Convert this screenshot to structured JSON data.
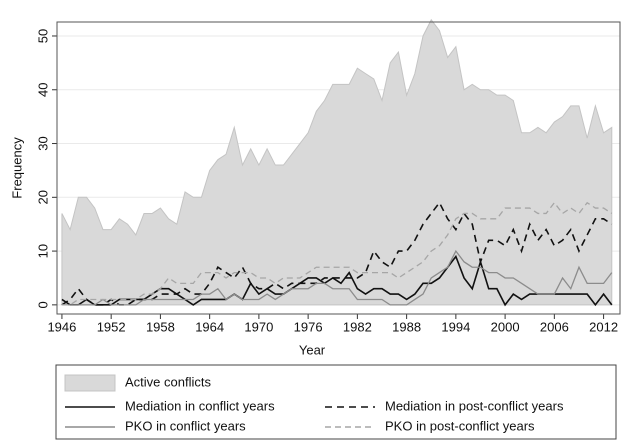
{
  "chart_data": {
    "type": "line",
    "x_label": "Year",
    "y_label": "Frequency",
    "x": [
      1946,
      1947,
      1948,
      1949,
      1950,
      1951,
      1952,
      1953,
      1954,
      1955,
      1956,
      1957,
      1958,
      1959,
      1960,
      1961,
      1962,
      1963,
      1964,
      1965,
      1966,
      1967,
      1968,
      1969,
      1970,
      1971,
      1972,
      1973,
      1974,
      1975,
      1976,
      1977,
      1978,
      1979,
      1980,
      1981,
      1982,
      1983,
      1984,
      1985,
      1986,
      1987,
      1988,
      1989,
      1990,
      1991,
      1992,
      1993,
      1994,
      1995,
      1996,
      1997,
      1998,
      1999,
      2000,
      2001,
      2002,
      2003,
      2004,
      2005,
      2006,
      2007,
      2008,
      2009,
      2010,
      2011,
      2012,
      2013
    ],
    "series": [
      {
        "name": "Active conflicts",
        "color": "#d9d9d9",
        "style": "area",
        "values": [
          17,
          14,
          20,
          20,
          18,
          14,
          14,
          16,
          15,
          13,
          17,
          17,
          18,
          16,
          15,
          21,
          20,
          20,
          25,
          27,
          28,
          33,
          26,
          29,
          26,
          29,
          26,
          26,
          28,
          30,
          32,
          36,
          38,
          41,
          41,
          41,
          44,
          43,
          42,
          38,
          45,
          47,
          39,
          43,
          50,
          53,
          51,
          46,
          48,
          40,
          41,
          40,
          40,
          39,
          39,
          38,
          32,
          32,
          33,
          32,
          34,
          35,
          37,
          37,
          31,
          37,
          32,
          33
        ]
      },
      {
        "name": "Mediation in conflict years",
        "color": "#111111",
        "style": "solid",
        "values": [
          1,
          0,
          0,
          1,
          0,
          0,
          0,
          1,
          1,
          1,
          1,
          2,
          3,
          3,
          2,
          1,
          0,
          1,
          1,
          1,
          1,
          2,
          1,
          4,
          2,
          3,
          2,
          2,
          3,
          4,
          5,
          5,
          4,
          5,
          4,
          6,
          3,
          2,
          3,
          3,
          2,
          2,
          1,
          2,
          4,
          4,
          5,
          7,
          9,
          5,
          3,
          8,
          3,
          3,
          0,
          2,
          1,
          2,
          2,
          2,
          2,
          2,
          2,
          2,
          2,
          0,
          2,
          0
        ]
      },
      {
        "name": "Mediation in post-conflict years",
        "color": "#111111",
        "style": "dashed",
        "values": [
          0,
          1,
          3,
          1,
          0,
          0,
          1,
          0,
          0,
          1,
          1,
          1,
          2,
          2,
          2,
          3,
          2,
          2,
          4,
          7,
          6,
          5,
          7,
          4,
          3,
          3,
          4,
          3,
          4,
          4,
          4,
          4,
          5,
          5,
          5,
          5,
          5,
          6,
          10,
          8,
          7,
          10,
          10,
          12,
          15,
          17,
          19,
          16,
          14,
          17,
          15,
          8,
          12,
          12,
          11,
          14,
          10,
          15,
          12,
          14,
          11,
          12,
          14,
          10,
          13,
          16,
          16,
          15
        ]
      },
      {
        "name": "PKO in conflict years",
        "color": "#8c8c8c",
        "style": "solid",
        "values": [
          0,
          0,
          0,
          0,
          0,
          1,
          0,
          0,
          0,
          0,
          1,
          1,
          1,
          1,
          1,
          1,
          1,
          2,
          2,
          3,
          1,
          2,
          1,
          1,
          1,
          2,
          1,
          2,
          3,
          3,
          3,
          4,
          4,
          3,
          3,
          3,
          1,
          1,
          1,
          1,
          0,
          0,
          0,
          1,
          2,
          5,
          6,
          7,
          10,
          8,
          7,
          7,
          6,
          6,
          5,
          5,
          4,
          3,
          2,
          2,
          2,
          5,
          3,
          7,
          4,
          4,
          4,
          6
        ]
      },
      {
        "name": "PKO in post-conflict years",
        "color": "#a6a6a6",
        "style": "dashed",
        "values": [
          0,
          0,
          1,
          1,
          1,
          1,
          1,
          1,
          1,
          1,
          2,
          2,
          3,
          5,
          4,
          4,
          4,
          6,
          6,
          6,
          5,
          6,
          6,
          6,
          5,
          5,
          4,
          5,
          5,
          5,
          6,
          7,
          7,
          7,
          7,
          7,
          6,
          6,
          6,
          6,
          6,
          5,
          6,
          7,
          8,
          10,
          11,
          13,
          16,
          17,
          17,
          16,
          16,
          16,
          18,
          18,
          18,
          18,
          17,
          17,
          19,
          17,
          18,
          17,
          19,
          18,
          18,
          17
        ]
      }
    ],
    "xlim": [
      1945.4,
      2014
    ],
    "ylim": [
      -1.7,
      52.6
    ],
    "xticks": [
      1946,
      1952,
      1958,
      1964,
      1970,
      1976,
      1982,
      1988,
      1994,
      2000,
      2006,
      2012
    ],
    "yticks": [
      0,
      10,
      20,
      30,
      40,
      50
    ],
    "grid": true,
    "legend_position": "bottom"
  }
}
